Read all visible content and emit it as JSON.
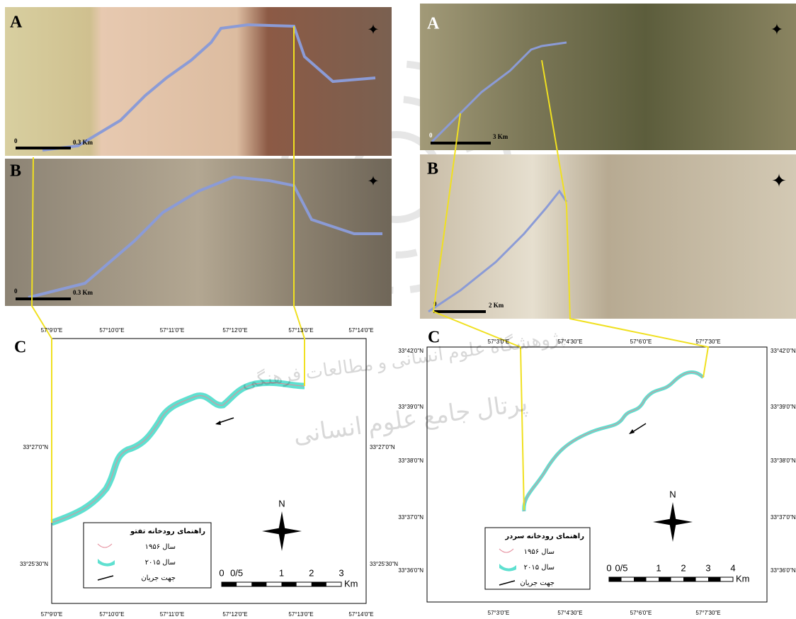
{
  "left": {
    "panel_a": {
      "label": "A",
      "scale": [
        "0",
        "0.3 Km"
      ]
    },
    "panel_b": {
      "label": "B",
      "scale": [
        "0",
        "0.3 Km"
      ]
    },
    "panel_c": {
      "label": "C",
      "top_coords": [
        "57°9'0\"E",
        "57°10'0\"E",
        "57°11'0\"E",
        "57°12'0\"E",
        "57°13'0\"E",
        "57°14'0\"E"
      ],
      "bottom_coords": [
        "57°9'0\"E",
        "57°10'0\"E",
        "57°11'0\"E",
        "57°12'0\"E",
        "57°13'0\"E",
        "57°14'0\"E"
      ],
      "left_coords": [
        "33°27'0\"N",
        "33°25'30\"N"
      ],
      "right_coords": [
        "33°27'0\"N",
        "33°25'30\"N"
      ],
      "north": "N",
      "legend": {
        "title": "راهنمای رودخانه تفتو",
        "items": [
          "سال ۱۹۵۶",
          "سال ۲۰۱۵",
          "جهت جریان"
        ]
      },
      "scale": {
        "ticks": [
          "0",
          "0/5",
          "1",
          "2",
          "3"
        ],
        "unit": "Km"
      }
    }
  },
  "right": {
    "panel_a": {
      "label": "A",
      "scale": [
        "0",
        "3 Km"
      ]
    },
    "panel_b": {
      "label": "B",
      "scale": [
        "0",
        "2 Km"
      ]
    },
    "panel_c": {
      "label": "C",
      "top_coords": [
        "57°3'0\"E",
        "57°4'30\"E",
        "57°6'0\"E",
        "57°7'30\"E"
      ],
      "bottom_coords": [
        "57°3'0\"E",
        "57°4'30\"E",
        "57°6'0\"E",
        "57°7'30\"E"
      ],
      "left_coords": [
        "33°42'0\"N",
        "33°39'0\"N",
        "33°38'0\"N",
        "33°37'0\"N",
        "33°36'0\"N"
      ],
      "right_coords": [
        "33°42'0\"N",
        "33°39'0\"N",
        "33°38'0\"N",
        "33°37'0\"N",
        "33°36'0\"N"
      ],
      "north": "N",
      "legend": {
        "title": "راهنمای رودخانه سردر",
        "items": [
          "سال ۱۹۵۶",
          "سال ۲۰۱۵",
          "جهت جریان"
        ]
      },
      "scale": {
        "ticks": [
          "0",
          "0/5",
          "1",
          "2",
          "3",
          "4"
        ],
        "unit": "Km"
      }
    }
  },
  "watermark": [
    "پژوهشگاه علوم انسانی و مطالعات فرهنگی",
    "پرتال جامع علوم انسانی"
  ]
}
